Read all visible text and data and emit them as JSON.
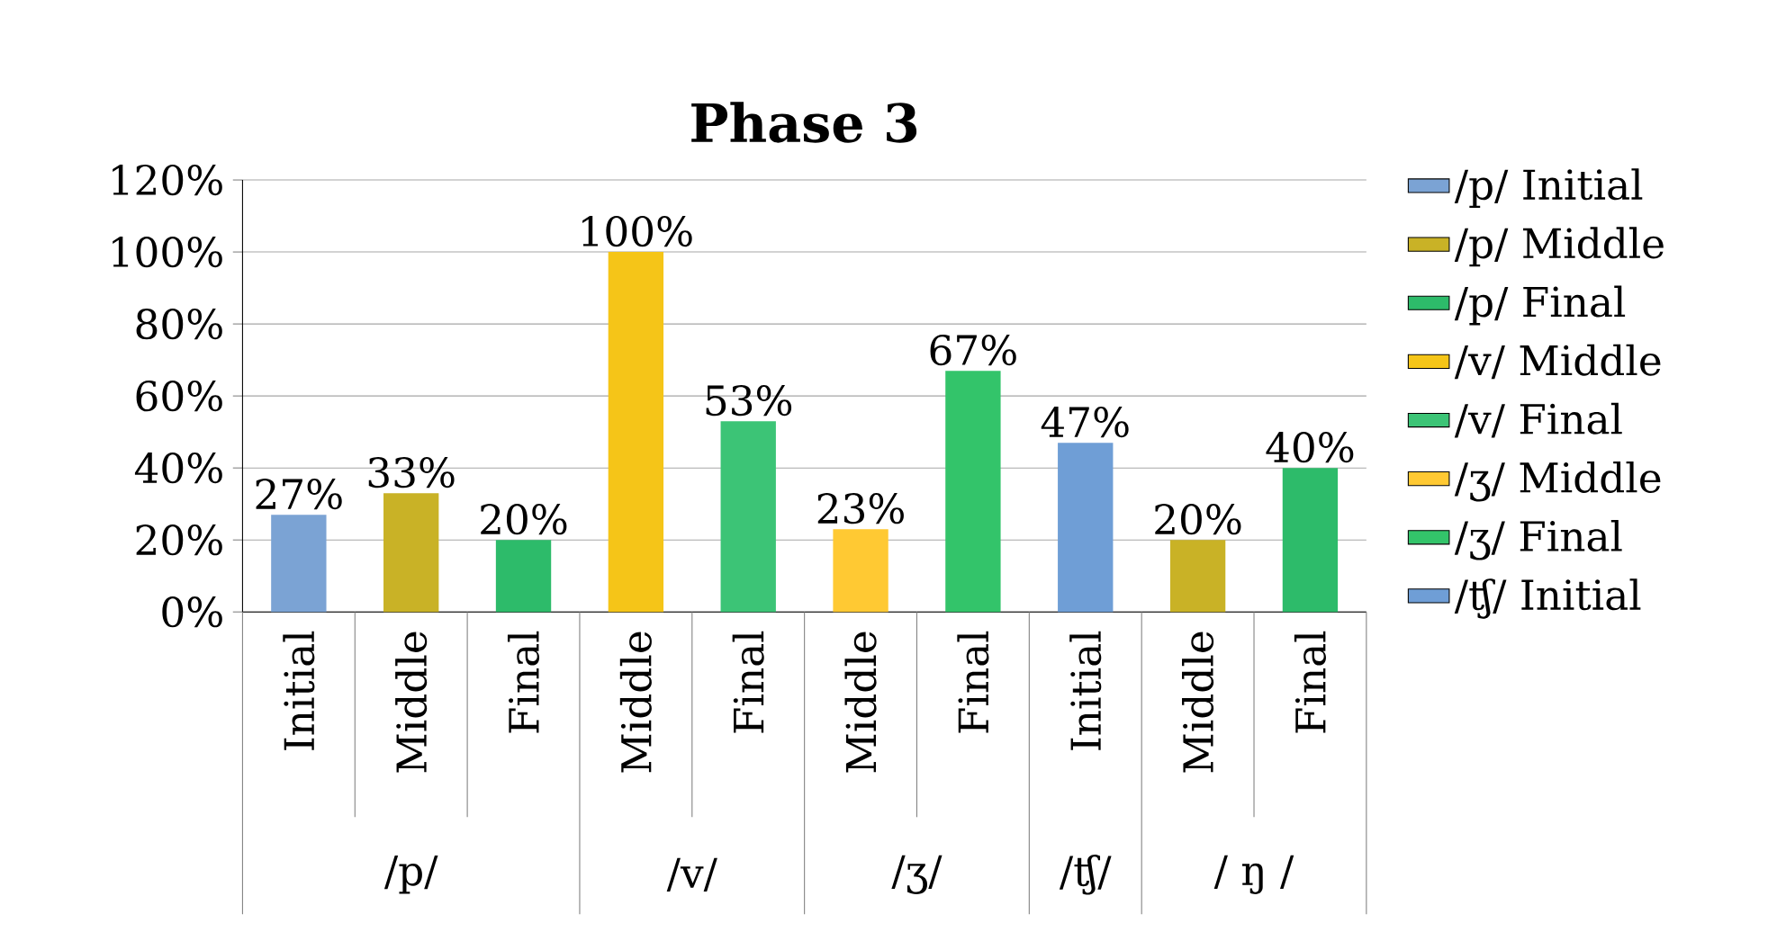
{
  "chart_data": {
    "type": "bar",
    "title": "Phase 3",
    "categories": [
      "Initial",
      "Middle",
      "Final",
      "Middle",
      "Final",
      "Middle",
      "Final",
      "Initial",
      "Middle",
      "Final"
    ],
    "series": [
      {
        "name": "/p/ Initial",
        "color": "#7ba3d4",
        "values": [
          27,
          null,
          null,
          null,
          null,
          null,
          null,
          null,
          null,
          null
        ],
        "value_labels": [
          "27%",
          null,
          null,
          null,
          null,
          null,
          null,
          null,
          null,
          null
        ]
      },
      {
        "name": "/p/ Middle",
        "color": "#c9b226",
        "values": [
          null,
          33,
          null,
          null,
          null,
          null,
          null,
          null,
          null,
          null
        ],
        "value_labels": [
          null,
          "33%",
          null,
          null,
          null,
          null,
          null,
          null,
          null,
          null
        ]
      },
      {
        "name": "/p/ Final",
        "color": "#2dbb6a",
        "values": [
          null,
          null,
          20,
          null,
          null,
          null,
          null,
          null,
          null,
          null
        ],
        "value_labels": [
          null,
          null,
          "20%",
          null,
          null,
          null,
          null,
          null,
          null,
          null
        ]
      },
      {
        "name": "/v/ Middle",
        "color": "#f5c518",
        "values": [
          null,
          null,
          null,
          100,
          null,
          null,
          null,
          null,
          null,
          null
        ],
        "value_labels": [
          null,
          null,
          null,
          "100%",
          null,
          null,
          null,
          null,
          null,
          null
        ]
      },
      {
        "name": "/v/ Final",
        "color": "#3cc476",
        "values": [
          null,
          null,
          null,
          null,
          53,
          null,
          null,
          null,
          null,
          null
        ],
        "value_labels": [
          null,
          null,
          null,
          null,
          "53%",
          null,
          null,
          null,
          null,
          null
        ]
      },
      {
        "name": "/ʒ/ Middle",
        "color": "#ffc933",
        "values": [
          null,
          null,
          null,
          null,
          null,
          23,
          null,
          null,
          null,
          null
        ],
        "value_labels": [
          null,
          null,
          null,
          null,
          null,
          "23%",
          null,
          null,
          null,
          null
        ]
      },
      {
        "name": "/ʒ/ Final",
        "color": "#33c46a",
        "values": [
          null,
          null,
          null,
          null,
          null,
          null,
          67,
          null,
          null,
          null
        ],
        "value_labels": [
          null,
          null,
          null,
          null,
          null,
          null,
          "67%",
          null,
          null,
          null
        ]
      },
      {
        "name": "/ʧ/ Initial",
        "color": "#6f9ed6",
        "values": [
          null,
          null,
          null,
          null,
          null,
          null,
          null,
          47,
          null,
          null
        ],
        "value_labels": [
          null,
          null,
          null,
          null,
          null,
          null,
          null,
          "47%",
          null,
          null
        ]
      },
      {
        "color": "#c9b226",
        "values": [
          null,
          null,
          null,
          null,
          null,
          null,
          null,
          null,
          20,
          null
        ],
        "value_labels": [
          null,
          null,
          null,
          null,
          null,
          null,
          null,
          null,
          "20%",
          null
        ]
      },
      {
        "color": "#2dbb6a",
        "values": [
          null,
          null,
          null,
          null,
          null,
          null,
          null,
          null,
          null,
          40
        ],
        "value_labels": [
          null,
          null,
          null,
          null,
          null,
          null,
          null,
          null,
          null,
          "40%"
        ]
      }
    ],
    "ylim": [
      0,
      120
    ],
    "yticks": [
      {
        "value": 0,
        "label": "0%"
      },
      {
        "value": 20,
        "label": "20%"
      },
      {
        "value": 40,
        "label": "40%"
      },
      {
        "value": 60,
        "label": "60%"
      },
      {
        "value": 80,
        "label": "80%"
      },
      {
        "value": 100,
        "label": "100%"
      },
      {
        "value": 120,
        "label": "120%"
      }
    ],
    "grid": "y",
    "legend": "right",
    "annotations": [
      "/p/",
      "/v/",
      "/ʒ/",
      "/ʧ/",
      "/ ŋ /"
    ]
  }
}
